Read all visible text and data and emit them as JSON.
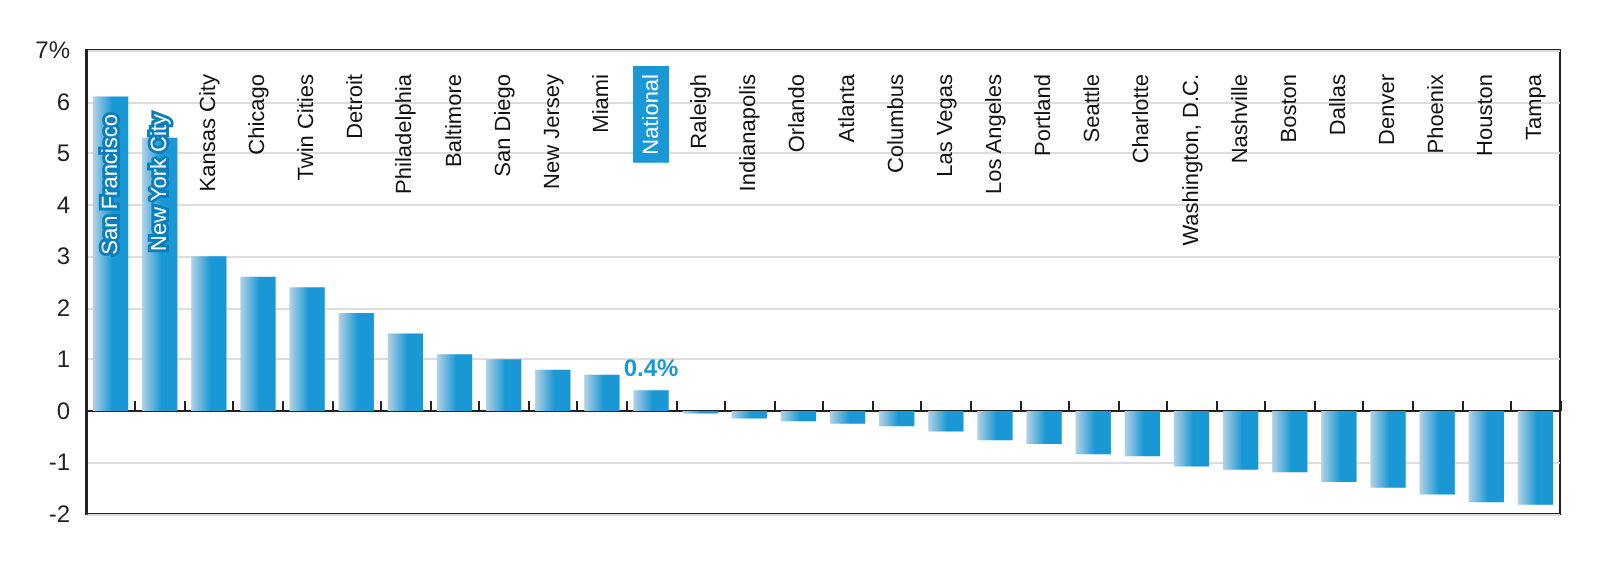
{
  "chart_data": {
    "type": "bar",
    "categories": [
      "San Francisco",
      "New York City",
      "Kansas City",
      "Chicago",
      "Twin Cities",
      "Detroit",
      "Philadelphia",
      "Baltimore",
      "San Diego",
      "New Jersey",
      "Miami",
      "National",
      "Raleigh",
      "Indianapolis",
      "Orlando",
      "Atlanta",
      "Columbus",
      "Las Vegas",
      "Los Angeles",
      "Portland",
      "Seattle",
      "Charlotte",
      "Washington, D.C.",
      "Nashville",
      "Boston",
      "Dallas",
      "Denver",
      "Phoenix",
      "Houston",
      "Tampa"
    ],
    "values": [
      6.1,
      5.3,
      3.0,
      2.6,
      2.4,
      1.9,
      1.5,
      1.1,
      1.0,
      0.8,
      0.7,
      0.4,
      -0.05,
      -0.15,
      -0.2,
      -0.25,
      -0.3,
      -0.4,
      -0.57,
      -0.64,
      -0.84,
      -0.88,
      -1.08,
      -1.14,
      -1.19,
      -1.38,
      -1.49,
      -1.62,
      -1.77,
      -1.82
    ],
    "color": "#1a98d5",
    "value_labels": [
      null,
      null,
      null,
      null,
      null,
      null,
      null,
      null,
      null,
      null,
      null,
      "0.4%",
      null,
      null,
      null,
      null,
      null,
      null,
      null,
      null,
      null,
      null,
      null,
      null,
      null,
      null,
      null,
      null,
      null,
      null
    ],
    "ylim": [
      -2,
      7
    ],
    "yticks": [
      -2,
      -1,
      0,
      1,
      2,
      3,
      4,
      5,
      6,
      {
        "value": 7,
        "label": "7%"
      }
    ],
    "grid": "y"
  }
}
